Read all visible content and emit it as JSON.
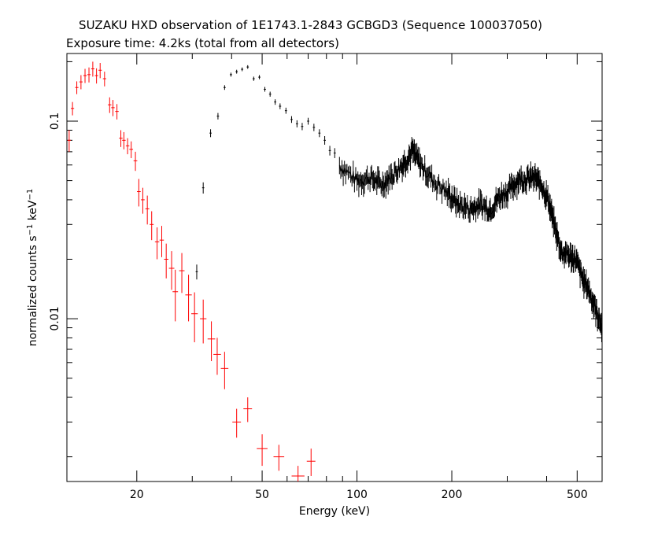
{
  "header": {
    "title": "SUZAKU HXD observation of 1E1743.1-2843 GCBGD3 (Sequence 100037050)",
    "subtitle": "Exposure time: 4.2ks (total from all detectors)"
  },
  "chart_data": {
    "type": "scatter",
    "xlabel": "Energy (keV)",
    "ylabel": "normalized counts s^-1 keV^-1",
    "xscale": "log",
    "yscale": "log",
    "xlim": [
      12,
      600
    ],
    "ylim": [
      0.0015,
      0.22
    ],
    "xticks": [
      20,
      50,
      100,
      200,
      500
    ],
    "xtick_labels": [
      "20",
      "50",
      "100",
      "200",
      "500"
    ],
    "yticks": [
      0.01,
      0.1
    ],
    "ytick_labels": [
      "0.01",
      "0.1"
    ],
    "grid": false,
    "legend": "none",
    "series": [
      {
        "color": "#ff0000",
        "points": [
          [
            12.2,
            0.08,
            0.0015,
            0.01
          ],
          [
            12.5,
            0.116,
            0.0015,
            0.009
          ],
          [
            12.9,
            0.148,
            0.0015,
            0.011
          ],
          [
            13.3,
            0.158,
            0.0015,
            0.013
          ],
          [
            13.7,
            0.17,
            0.0015,
            0.014
          ],
          [
            14.1,
            0.172,
            0.0015,
            0.015
          ],
          [
            14.5,
            0.184,
            0.0015,
            0.016
          ],
          [
            14.9,
            0.17,
            0.0015,
            0.015
          ],
          [
            15.3,
            0.181,
            0.0015,
            0.016
          ],
          [
            15.8,
            0.164,
            0.0015,
            0.014
          ],
          [
            16.4,
            0.121,
            0.0016,
            0.011
          ],
          [
            16.8,
            0.117,
            0.0016,
            0.011
          ],
          [
            17.3,
            0.112,
            0.0016,
            0.01
          ],
          [
            17.8,
            0.082,
            0.0016,
            0.008
          ],
          [
            18.2,
            0.08,
            0.0016,
            0.008
          ],
          [
            18.7,
            0.075,
            0.0016,
            0.007
          ],
          [
            19.2,
            0.072,
            0.0017,
            0.007
          ],
          [
            19.8,
            0.063,
            0.0017,
            0.007
          ],
          [
            20.3,
            0.044,
            0.0017,
            0.007
          ],
          [
            20.9,
            0.04,
            0.0017,
            0.006
          ],
          [
            21.6,
            0.036,
            0.0018,
            0.006
          ],
          [
            22.3,
            0.03,
            0.0018,
            0.005
          ],
          [
            23.2,
            0.0245,
            0.002,
            0.0045
          ],
          [
            24.0,
            0.025,
            0.002,
            0.0045
          ],
          [
            24.8,
            0.02,
            0.002,
            0.004
          ],
          [
            25.8,
            0.018,
            0.0025,
            0.004
          ],
          [
            26.5,
            0.0137,
            0.0025,
            0.004
          ],
          [
            27.8,
            0.0175,
            0.0025,
            0.004
          ],
          [
            29.2,
            0.0132,
            0.003,
            0.0035
          ],
          [
            30.5,
            0.0106,
            0.003,
            0.003
          ],
          [
            32.5,
            0.01,
            0.003,
            0.0025
          ],
          [
            34.5,
            0.0079,
            0.0035,
            0.0018
          ],
          [
            36.0,
            0.0066,
            0.0035,
            0.0014
          ],
          [
            38.0,
            0.0056,
            0.0035,
            0.0012
          ],
          [
            41.5,
            0.003,
            0.004,
            0.0005
          ],
          [
            45.0,
            0.0035,
            0.004,
            0.0005
          ],
          [
            50.0,
            0.0022,
            0.005,
            0.0004
          ],
          [
            56.5,
            0.002,
            0.005,
            0.0003
          ],
          [
            65.0,
            0.0016,
            0.006,
            0.0002
          ],
          [
            71.5,
            0.0019,
            0.004,
            0.0003
          ]
        ]
      },
      {
        "color": "#000000",
        "points": [
          [
            31.0,
            0.0173,
            0.001,
            0.0015
          ],
          [
            32.5,
            0.046,
            0.001,
            0.003
          ],
          [
            34.3,
            0.087,
            0.001,
            0.004
          ],
          [
            36.2,
            0.106,
            0.001,
            0.004
          ],
          [
            38.0,
            0.148,
            0.001,
            0.004
          ],
          [
            39.8,
            0.172,
            0.001,
            0.004
          ],
          [
            41.5,
            0.178,
            0.001,
            0.004
          ],
          [
            43.2,
            0.183,
            0.001,
            0.004
          ],
          [
            45.0,
            0.188,
            0.001,
            0.004
          ],
          [
            47.0,
            0.164,
            0.001,
            0.004
          ],
          [
            49.0,
            0.167,
            0.001,
            0.004
          ],
          [
            51.0,
            0.145,
            0.001,
            0.004
          ],
          [
            53.0,
            0.137,
            0.001,
            0.004
          ],
          [
            55.0,
            0.125,
            0.001,
            0.004
          ],
          [
            57.0,
            0.119,
            0.001,
            0.004
          ],
          [
            59.5,
            0.113,
            0.001,
            0.004
          ],
          [
            62.0,
            0.102,
            0.001,
            0.004
          ],
          [
            64.5,
            0.097,
            0.001,
            0.004
          ],
          [
            67.0,
            0.094,
            0.001,
            0.004
          ],
          [
            70.0,
            0.1,
            0.001,
            0.004
          ],
          [
            73.0,
            0.093,
            0.001,
            0.004
          ],
          [
            76.0,
            0.087,
            0.001,
            0.004
          ],
          [
            79.0,
            0.08,
            0.001,
            0.004
          ],
          [
            82.0,
            0.071,
            0.001,
            0.004
          ],
          [
            85.0,
            0.069,
            0.001,
            0.004
          ]
        ]
      },
      {
        "color": "#000000",
        "segments": [
          [
            88,
            0.06,
            0.052
          ],
          [
            100,
            0.05,
            0.049
          ],
          [
            110,
            0.052,
            0.046
          ],
          [
            120,
            0.048,
            0.05
          ],
          [
            130,
            0.054,
            0.057
          ],
          [
            140,
            0.061,
            0.067
          ],
          [
            150,
            0.071,
            0.065
          ],
          [
            160,
            0.06,
            0.053
          ],
          [
            175,
            0.05,
            0.045
          ],
          [
            195,
            0.043,
            0.04
          ],
          [
            210,
            0.038,
            0.037
          ],
          [
            230,
            0.036,
            0.034
          ],
          [
            245,
            0.038,
            0.04
          ],
          [
            265,
            0.036,
            0.039
          ],
          [
            285,
            0.042,
            0.045
          ],
          [
            305,
            0.045,
            0.049
          ],
          [
            325,
            0.051,
            0.053
          ],
          [
            345,
            0.051,
            0.053
          ],
          [
            365,
            0.052,
            0.05
          ],
          [
            385,
            0.048,
            0.044
          ],
          [
            405,
            0.04,
            0.034
          ],
          [
            425,
            0.029,
            0.024
          ],
          [
            445,
            0.022,
            0.021
          ],
          [
            470,
            0.021,
            0.021
          ],
          [
            495,
            0.02,
            0.017
          ],
          [
            520,
            0.016,
            0.015
          ],
          [
            545,
            0.014,
            0.012
          ],
          [
            575,
            0.011,
            0.01
          ],
          [
            600,
            0.009,
            0.009
          ]
        ],
        "noise": 0.12
      }
    ]
  }
}
